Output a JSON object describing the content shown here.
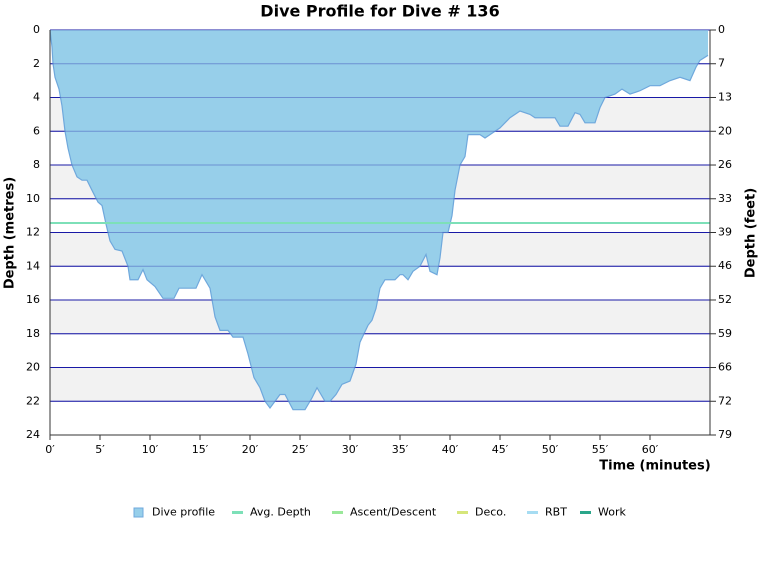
{
  "chart_data": {
    "type": "area",
    "title": "Dive Profile for Dive # 136",
    "xlabel": "Time (minutes)",
    "ylabel": "Depth (metres)",
    "y2label": "Depth (feet)",
    "xlim": [
      0,
      66
    ],
    "ylim": [
      0,
      24
    ],
    "y2lim": [
      0,
      78.74
    ],
    "inverted_y": true,
    "xticks": [
      {
        "value": 0,
        "label": "0′"
      },
      {
        "value": 5,
        "label": "5′"
      },
      {
        "value": 10,
        "label": "10′"
      },
      {
        "value": 15,
        "label": "15′"
      },
      {
        "value": 20,
        "label": "20′"
      },
      {
        "value": 25,
        "label": "25′"
      },
      {
        "value": 30,
        "label": "30′"
      },
      {
        "value": 35,
        "label": "35′"
      },
      {
        "value": 40,
        "label": "40′"
      },
      {
        "value": 45,
        "label": "45′"
      },
      {
        "value": 50,
        "label": "50′"
      },
      {
        "value": 55,
        "label": "55′"
      },
      {
        "value": 60,
        "label": "60′"
      }
    ],
    "yticks": [
      0,
      2,
      4,
      6,
      8,
      10,
      12,
      14,
      16,
      18,
      20,
      22,
      24
    ],
    "y2ticks": [
      0,
      {
        "value": 6.56,
        "label": "7"
      },
      {
        "value": 13.12,
        "label": "13"
      },
      {
        "value": 19.69,
        "label": "20"
      },
      {
        "value": 26.25,
        "label": "26"
      },
      {
        "value": 32.81,
        "label": "33"
      },
      {
        "value": 39.37,
        "label": "39"
      },
      {
        "value": 45.93,
        "label": "46"
      },
      {
        "value": 52.49,
        "label": "52"
      },
      {
        "value": 59.06,
        "label": "59"
      },
      {
        "value": 65.62,
        "label": "66"
      },
      {
        "value": 72.18,
        "label": "72"
      },
      {
        "value": 78.74,
        "label": "79"
      }
    ],
    "grid": true,
    "series": [
      {
        "name": "Dive profile",
        "color": "#97cfea",
        "x": [
          0,
          0.2,
          0.3,
          0.5,
          0.9,
          1.2,
          1.5,
          1.8,
          2.2,
          2.7,
          3.2,
          3.7,
          4.2,
          4.8,
          5.2,
          5.6,
          6.0,
          6.5,
          7.2,
          7.8,
          8.0,
          8.8,
          9.3,
          9.7,
          10.5,
          11.3,
          12.4,
          12.9,
          14.0,
          14.6,
          15.2,
          16.0,
          16.5,
          17.0,
          17.8,
          18.3,
          19.3,
          19.8,
          20.4,
          21.0,
          21.5,
          22.0,
          22.5,
          23.0,
          23.5,
          24.3,
          25.5,
          26.2,
          26.7,
          27.5,
          28.0,
          28.6,
          29.2,
          30.0,
          30.6,
          31.0,
          31.8,
          32.2,
          32.6,
          33.0,
          33.5,
          34.5,
          35.0,
          35.3,
          35.8,
          36.3,
          37.0,
          37.6,
          38.0,
          38.7,
          39.0,
          39.3,
          39.8,
          40.2,
          40.5,
          41.0,
          41.5,
          41.8,
          43.0,
          43.5,
          44.0,
          45.0,
          46.0,
          47.0,
          48.0,
          48.5,
          50.5,
          51.0,
          51.8,
          52.5,
          53.0,
          53.5,
          54.5,
          55.0,
          55.5,
          56.5,
          57.2,
          58.0,
          59.0,
          60.0,
          61.0,
          62.0,
          63.0,
          64.0,
          64.6,
          65.0,
          65.8
        ],
        "values": [
          0,
          1,
          2,
          2.8,
          3.5,
          4.5,
          6,
          7,
          8,
          8.7,
          8.9,
          8.9,
          9.5,
          10.2,
          10.4,
          11.5,
          12.5,
          13,
          13.1,
          14,
          14.8,
          14.8,
          14.2,
          14.8,
          15.2,
          15.9,
          15.9,
          15.3,
          15.3,
          15.3,
          14.5,
          15.3,
          17,
          17.8,
          17.8,
          18.2,
          18.2,
          19.2,
          20.6,
          21.2,
          22,
          22.4,
          22,
          21.6,
          21.6,
          22.5,
          22.5,
          21.8,
          21.2,
          22,
          22,
          21.6,
          21,
          20.8,
          19.8,
          18.5,
          17.5,
          17.2,
          16.5,
          15.3,
          14.8,
          14.8,
          14.5,
          14.5,
          14.8,
          14.3,
          14,
          13.3,
          14.3,
          14.5,
          13.5,
          12,
          12,
          11,
          9.5,
          8,
          7.5,
          6.2,
          6.2,
          6.4,
          6.2,
          5.8,
          5.2,
          4.8,
          5,
          5.2,
          5.2,
          5.7,
          5.7,
          4.9,
          5,
          5.5,
          5.5,
          4.6,
          4,
          3.8,
          3.5,
          3.8,
          3.6,
          3.3,
          3.3,
          3,
          2.8,
          3,
          2.2,
          1.8,
          1.5
        ]
      }
    ],
    "avg_depth": 11.44,
    "legend": [
      {
        "name": "Dive profile",
        "color": "#97cfea"
      },
      {
        "name": "Avg. Depth",
        "color": "#7de0b8"
      },
      {
        "name": "Ascent/Descent",
        "color": "#9ae89a"
      },
      {
        "name": "Deco.",
        "color": "#d6e67a"
      },
      {
        "name": "RBT",
        "color": "#a6dcf2"
      },
      {
        "name": "Work",
        "color": "#2aa68a"
      }
    ]
  }
}
